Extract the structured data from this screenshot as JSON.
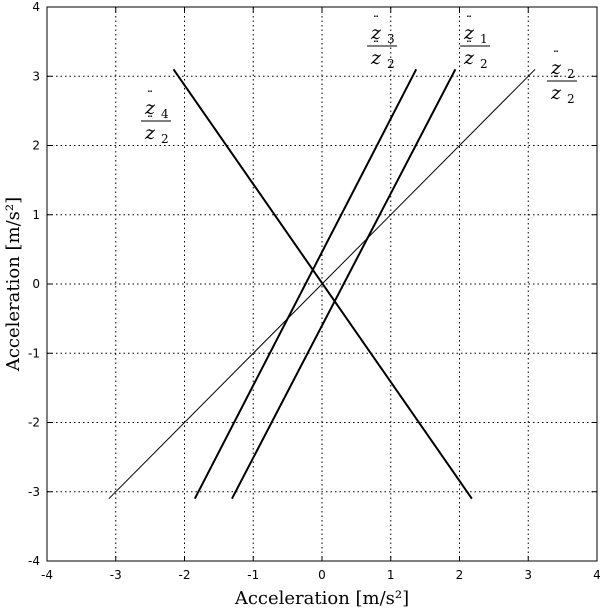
{
  "chart_data": {
    "type": "line",
    "title": "",
    "xlabel": "Acceleration [m/s²]",
    "ylabel": "Acceleration [m/s²]",
    "xlim": [
      -4,
      4
    ],
    "ylim": [
      -4,
      4
    ],
    "xticks": [
      "-4",
      "-3",
      "-2",
      "-1",
      "0",
      "1",
      "2",
      "3",
      "4"
    ],
    "yticks": [
      "-4",
      "-3",
      "-2",
      "-1",
      "0",
      "1",
      "2",
      "3",
      "4"
    ],
    "grid": true,
    "legend": "none",
    "series": [
      {
        "annotation": {
          "num": "z",
          "num_sub": "1",
          "den": "z",
          "den_sub": "2"
        },
        "x": [
          -1.31,
          1.94
        ],
        "y": [
          -3.1,
          3.1
        ],
        "stroke_width": 2.0
      },
      {
        "annotation": {
          "num": "z",
          "num_sub": "2",
          "den": "z",
          "den_sub": "2"
        },
        "x": [
          -3.1,
          3.1
        ],
        "y": [
          -3.1,
          3.1
        ],
        "stroke_width": 1.0
      },
      {
        "annotation": {
          "num": "z",
          "num_sub": "3",
          "den": "z",
          "den_sub": "2"
        },
        "x": [
          -1.85,
          1.37
        ],
        "y": [
          -3.1,
          3.1
        ],
        "stroke_width": 2.0
      },
      {
        "annotation": {
          "num": "z",
          "num_sub": "4",
          "den": "z",
          "den_sub": "2"
        },
        "x": [
          2.18,
          -2.16
        ],
        "y": [
          -3.1,
          3.1
        ],
        "stroke_width": 2.0
      }
    ]
  }
}
